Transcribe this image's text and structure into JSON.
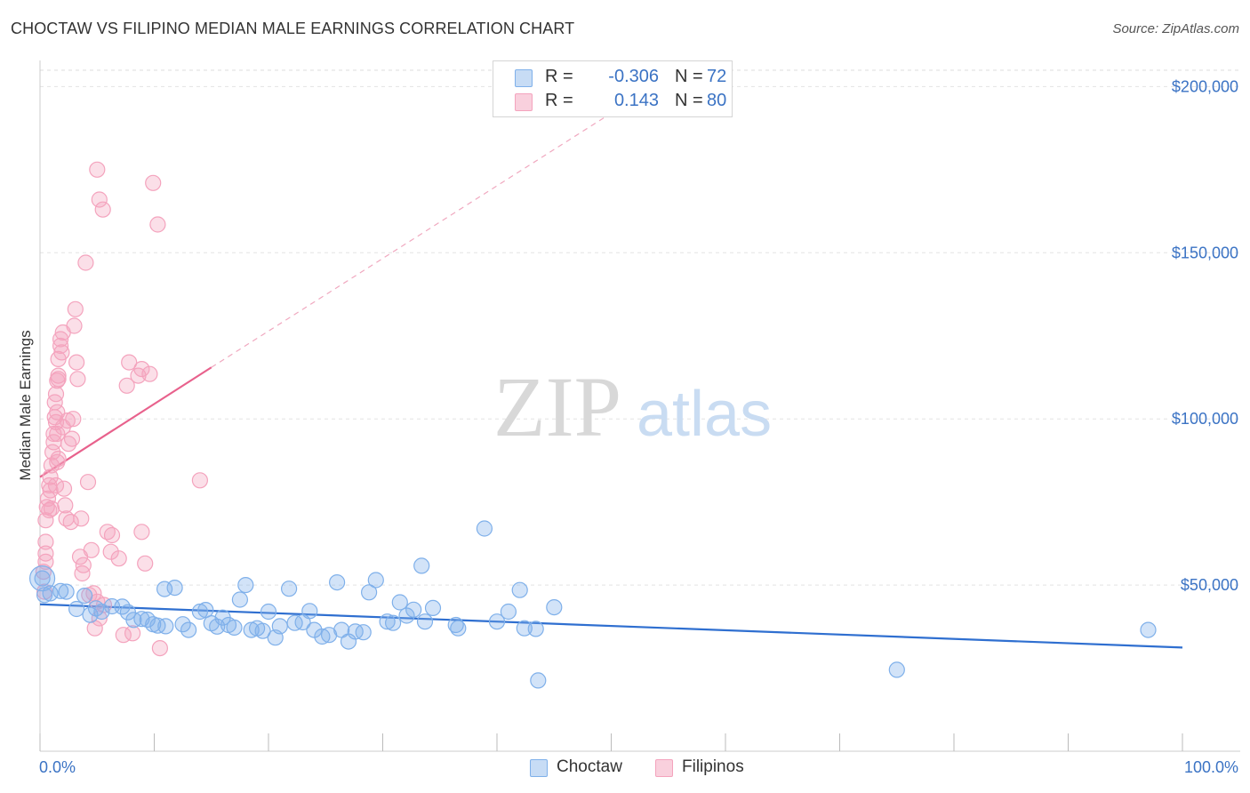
{
  "header": {
    "title": "CHOCTAW VS FILIPINO MEDIAN MALE EARNINGS CORRELATION CHART",
    "source": "Source: ZipAtlas.com"
  },
  "watermark": {
    "zip": "ZIP",
    "atlas": "atlas"
  },
  "legend": {
    "rows": [
      {
        "r_label": "R =",
        "r_value": "-0.306",
        "n_label": "N =",
        "n_value": "72",
        "color": "#7fb0ea"
      },
      {
        "r_label": "R =",
        "r_value": "0.143",
        "n_label": "N =",
        "n_value": "80",
        "color": "#f4a3bd"
      }
    ]
  },
  "bottom_legend": [
    {
      "label": "Choctaw",
      "color": "#7fb0ea"
    },
    {
      "label": "Filipinos",
      "color": "#f4a3bd"
    }
  ],
  "chart_data": {
    "type": "scatter",
    "title": "CHOCTAW VS FILIPINO MEDIAN MALE EARNINGS CORRELATION CHART",
    "xlabel": "",
    "ylabel": "Median Male Earnings",
    "xlim": [
      0,
      100
    ],
    "ylim": [
      0,
      210000
    ],
    "x_tick_labels": [
      "0.0%",
      "100.0%"
    ],
    "y_ticks": [
      50000,
      100000,
      150000,
      200000
    ],
    "y_tick_labels": [
      "$50,000",
      "$100,000",
      "$150,000",
      "$200,000"
    ],
    "grid": true,
    "legend_position": "top-center",
    "series": [
      {
        "name": "Choctaw",
        "color": "#7fb0ea",
        "line_color": "#2f6fd0",
        "trend": {
          "x": [
            0,
            100
          ],
          "y": [
            44200,
            31200
          ]
        },
        "points": [
          [
            0.2,
            52000
          ],
          [
            0.4,
            47000
          ],
          [
            0.9,
            47500
          ],
          [
            1.8,
            48200
          ],
          [
            2.3,
            48000
          ],
          [
            3.2,
            42800
          ],
          [
            3.9,
            46800
          ],
          [
            4.4,
            41000
          ],
          [
            4.9,
            43000
          ],
          [
            5.4,
            42000
          ],
          [
            6.3,
            43600
          ],
          [
            7.2,
            43500
          ],
          [
            7.7,
            41800
          ],
          [
            8.2,
            39500
          ],
          [
            8.9,
            39800
          ],
          [
            9.4,
            39600
          ],
          [
            9.9,
            38200
          ],
          [
            10.3,
            37800
          ],
          [
            10.9,
            48800
          ],
          [
            11.0,
            37600
          ],
          [
            11.8,
            49200
          ],
          [
            12.5,
            38200
          ],
          [
            13.0,
            36500
          ],
          [
            14.0,
            42000
          ],
          [
            14.5,
            42500
          ],
          [
            15.0,
            38500
          ],
          [
            15.5,
            37500
          ],
          [
            16.0,
            40200
          ],
          [
            16.5,
            38000
          ],
          [
            17.0,
            37200
          ],
          [
            17.5,
            45600
          ],
          [
            18.0,
            50000
          ],
          [
            18.5,
            36500
          ],
          [
            19.0,
            37000
          ],
          [
            19.5,
            36200
          ],
          [
            20.0,
            42000
          ],
          [
            20.6,
            34200
          ],
          [
            21.0,
            37600
          ],
          [
            21.8,
            48900
          ],
          [
            22.3,
            38600
          ],
          [
            23.0,
            38800
          ],
          [
            23.6,
            42200
          ],
          [
            24.0,
            36500
          ],
          [
            24.7,
            34500
          ],
          [
            25.3,
            35000
          ],
          [
            26.0,
            50800
          ],
          [
            26.4,
            36500
          ],
          [
            27.0,
            33000
          ],
          [
            27.6,
            36000
          ],
          [
            28.3,
            35800
          ],
          [
            28.8,
            47800
          ],
          [
            29.4,
            51500
          ],
          [
            30.4,
            39000
          ],
          [
            30.9,
            38600
          ],
          [
            31.5,
            44800
          ],
          [
            32.1,
            40800
          ],
          [
            32.7,
            42600
          ],
          [
            33.4,
            55800
          ],
          [
            33.7,
            39000
          ],
          [
            34.4,
            43100
          ],
          [
            36.4,
            38000
          ],
          [
            36.6,
            37000
          ],
          [
            38.9,
            67000
          ],
          [
            40.0,
            39000
          ],
          [
            41.0,
            42000
          ],
          [
            42.0,
            48500
          ],
          [
            42.4,
            37000
          ],
          [
            43.4,
            36800
          ],
          [
            43.6,
            21300
          ],
          [
            45.0,
            43300
          ],
          [
            75.0,
            24500
          ],
          [
            97.0,
            36500
          ]
        ]
      },
      {
        "name": "Filipinos",
        "color": "#f4a3bd",
        "line_color": "#e8618c",
        "trend": {
          "x": [
            0,
            15
          ],
          "y": [
            82500,
            115500
          ]
        },
        "trend_extension": {
          "x": [
            15,
            50
          ],
          "y": [
            115500,
            192000
          ]
        },
        "points": [
          [
            0.3,
            54000
          ],
          [
            0.4,
            48000
          ],
          [
            0.5,
            59500
          ],
          [
            0.5,
            63000
          ],
          [
            0.5,
            57000
          ],
          [
            0.5,
            69500
          ],
          [
            0.6,
            73500
          ],
          [
            0.7,
            76000
          ],
          [
            0.8,
            80000
          ],
          [
            0.9,
            78500
          ],
          [
            0.8,
            72500
          ],
          [
            0.9,
            82500
          ],
          [
            1.0,
            73000
          ],
          [
            1.0,
            86000
          ],
          [
            1.1,
            90000
          ],
          [
            1.2,
            95500
          ],
          [
            1.2,
            93000
          ],
          [
            1.3,
            100500
          ],
          [
            1.3,
            105000
          ],
          [
            1.4,
            107500
          ],
          [
            1.4,
            99000
          ],
          [
            1.5,
            102000
          ],
          [
            1.5,
            111500
          ],
          [
            1.5,
            95500
          ],
          [
            1.5,
            87000
          ],
          [
            1.4,
            80000
          ],
          [
            1.6,
            113000
          ],
          [
            1.6,
            118000
          ],
          [
            1.6,
            112000
          ],
          [
            1.6,
            88000
          ],
          [
            1.8,
            124000
          ],
          [
            1.8,
            122000
          ],
          [
            1.9,
            120000
          ],
          [
            2.0,
            126000
          ],
          [
            2.0,
            97500
          ],
          [
            2.1,
            79000
          ],
          [
            2.2,
            74000
          ],
          [
            2.3,
            70000
          ],
          [
            2.4,
            99500
          ],
          [
            2.5,
            92500
          ],
          [
            2.7,
            69000
          ],
          [
            2.8,
            94000
          ],
          [
            2.9,
            100000
          ],
          [
            3.0,
            128000
          ],
          [
            3.1,
            133000
          ],
          [
            3.2,
            117000
          ],
          [
            3.3,
            112000
          ],
          [
            3.5,
            58500
          ],
          [
            3.6,
            70000
          ],
          [
            3.7,
            53500
          ],
          [
            3.8,
            56000
          ],
          [
            4.0,
            147000
          ],
          [
            4.2,
            81000
          ],
          [
            4.3,
            47000
          ],
          [
            4.5,
            60500
          ],
          [
            4.7,
            47500
          ],
          [
            4.8,
            37000
          ],
          [
            5.0,
            45000
          ],
          [
            5.2,
            40000
          ],
          [
            5.6,
            44000
          ],
          [
            5.9,
            66000
          ],
          [
            6.2,
            60000
          ],
          [
            6.3,
            65000
          ],
          [
            6.9,
            58000
          ],
          [
            7.3,
            35000
          ],
          [
            7.6,
            110000
          ],
          [
            7.8,
            117000
          ],
          [
            8.1,
            35500
          ],
          [
            8.6,
            113000
          ],
          [
            8.9,
            115000
          ],
          [
            8.9,
            66000
          ],
          [
            9.2,
            56500
          ],
          [
            9.6,
            113500
          ],
          [
            9.9,
            171000
          ],
          [
            10.3,
            158500
          ],
          [
            5.0,
            175000
          ],
          [
            5.2,
            166000
          ],
          [
            5.5,
            163000
          ],
          [
            10.5,
            31000
          ],
          [
            14.0,
            81500
          ]
        ]
      }
    ]
  }
}
